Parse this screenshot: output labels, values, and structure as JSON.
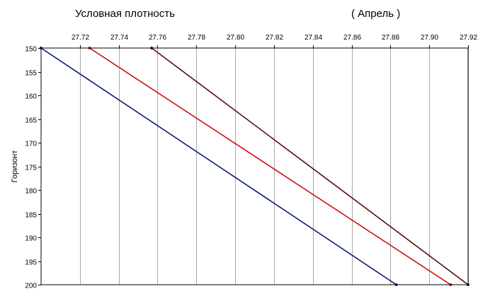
{
  "header": {
    "title": "Условная плотность",
    "month": "( Апрель )"
  },
  "chart_data": {
    "type": "line",
    "title": "Условная плотность",
    "subtitle": "( Апрель )",
    "xlabel": "",
    "ylabel": "Горизонт",
    "xlim": [
      27.7,
      27.92
    ],
    "ylim": [
      150,
      200
    ],
    "y_inverted": true,
    "x_axis_position": "top",
    "grid": true,
    "x_ticks": [
      "27.72",
      "27.74",
      "27.76",
      "27.78",
      "27.80",
      "27.82",
      "27.84",
      "27.86",
      "27.88",
      "27.90",
      "27.92"
    ],
    "y_ticks": [
      "150",
      "155",
      "160",
      "165",
      "170",
      "175",
      "180",
      "185",
      "190",
      "195",
      "200"
    ],
    "series": [
      {
        "color": "#0a1a6e",
        "points": [
          [
            27.7,
            150
          ],
          [
            27.883,
            200
          ]
        ]
      },
      {
        "color": "#d01010",
        "points": [
          [
            27.725,
            150
          ],
          [
            27.911,
            200
          ]
        ]
      },
      {
        "color": "#5a0a0a",
        "points": [
          [
            27.757,
            150
          ],
          [
            27.92,
            200
          ]
        ]
      }
    ]
  }
}
